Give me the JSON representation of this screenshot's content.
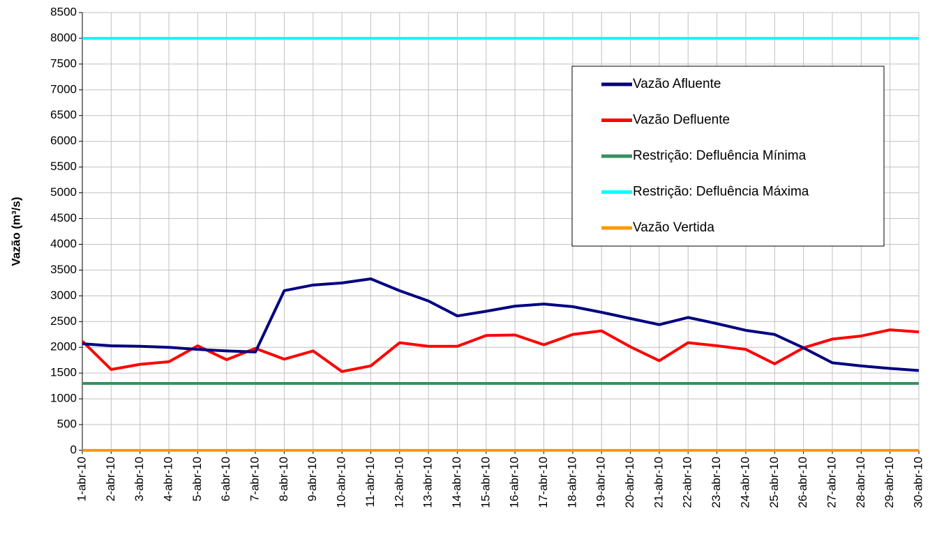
{
  "chart_data": {
    "type": "line",
    "y_label": "Vazão (m³/s)",
    "categories": [
      "1-abr-10",
      "2-abr-10",
      "3-abr-10",
      "4-abr-10",
      "5-abr-10",
      "6-abr-10",
      "7-abr-10",
      "8-abr-10",
      "9-abr-10",
      "10-abr-10",
      "11-abr-10",
      "12-abr-10",
      "13-abr-10",
      "14-abr-10",
      "15-abr-10",
      "16-abr-10",
      "17-abr-10",
      "18-abr-10",
      "19-abr-10",
      "20-abr-10",
      "21-abr-10",
      "22-abr-10",
      "23-abr-10",
      "24-abr-10",
      "25-abr-10",
      "26-abr-10",
      "27-abr-10",
      "28-abr-10",
      "29-abr-10",
      "30-abr-10"
    ],
    "series": [
      {
        "name": "Vazão Afluente",
        "color": "#000080",
        "values": [
          2070,
          2030,
          2020,
          2000,
          1960,
          1930,
          1910,
          3100,
          3210,
          3250,
          3330,
          3100,
          2900,
          2610,
          2700,
          2800,
          2840,
          2790,
          2680,
          2560,
          2440,
          2580,
          2460,
          2330,
          2250,
          1990,
          1700,
          1640,
          1590,
          1550
        ]
      },
      {
        "name": "Vazão Defluente",
        "color": "#ff0000",
        "values": [
          2120,
          1570,
          1670,
          1720,
          2030,
          1760,
          1980,
          1770,
          1930,
          1530,
          1640,
          2090,
          2020,
          2020,
          2230,
          2240,
          2050,
          2250,
          2320,
          2010,
          1740,
          2090,
          2030,
          1960,
          1680,
          1990,
          2160,
          2220,
          2340,
          2300
        ]
      },
      {
        "name": "Restrição: Defluência Mínima",
        "color": "#3a8f5f",
        "values": [
          1300,
          1300,
          1300,
          1300,
          1300,
          1300,
          1300,
          1300,
          1300,
          1300,
          1300,
          1300,
          1300,
          1300,
          1300,
          1300,
          1300,
          1300,
          1300,
          1300,
          1300,
          1300,
          1300,
          1300,
          1300,
          1300,
          1300,
          1300,
          1300,
          1300
        ]
      },
      {
        "name": "Restrição: Defluência Máxima",
        "color": "#00ffff",
        "values": [
          8000,
          8000,
          8000,
          8000,
          8000,
          8000,
          8000,
          8000,
          8000,
          8000,
          8000,
          8000,
          8000,
          8000,
          8000,
          8000,
          8000,
          8000,
          8000,
          8000,
          8000,
          8000,
          8000,
          8000,
          8000,
          8000,
          8000,
          8000,
          8000,
          8000
        ]
      },
      {
        "name": "Vazão Vertida",
        "color": "#ff9900",
        "values": [
          0,
          0,
          0,
          0,
          0,
          0,
          0,
          0,
          0,
          0,
          0,
          0,
          0,
          0,
          0,
          0,
          0,
          0,
          0,
          0,
          0,
          0,
          0,
          0,
          0,
          0,
          0,
          0,
          0,
          0
        ]
      }
    ],
    "ylim": [
      0,
      8500
    ],
    "yticks": [
      0,
      500,
      1000,
      1500,
      2000,
      2500,
      3000,
      3500,
      4000,
      4500,
      5000,
      5500,
      6000,
      6500,
      7000,
      7500,
      8000,
      8500
    ],
    "grid": true
  }
}
